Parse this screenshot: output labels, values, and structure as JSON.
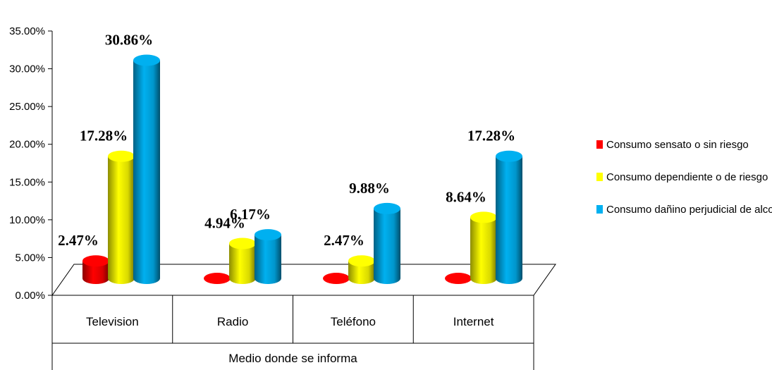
{
  "chart_data": {
    "type": "bar",
    "categories": [
      "Television",
      "Radio",
      "Teléfono",
      "Internet"
    ],
    "series": [
      {
        "name": "Consumo sensato o sin riesgo",
        "color": "#ff0000",
        "values": [
          2.47,
          0,
          0,
          0
        ],
        "labels": [
          "2.47%",
          "",
          "",
          ""
        ]
      },
      {
        "name": "Consumo dependiente o de riesgo",
        "color": "#ffff00",
        "values": [
          17.28,
          4.94,
          2.47,
          8.64
        ],
        "labels": [
          "17.28%",
          "4.94%",
          "2.47%",
          "8.64%"
        ]
      },
      {
        "name": "Consumo dañino perjudicial de alcohol",
        "color": "#00b0f0",
        "values": [
          30.86,
          6.17,
          9.88,
          17.28
        ],
        "labels": [
          "30.86%",
          "6.17%",
          "9.88%",
          "17.28%"
        ]
      }
    ],
    "xlabel": "Medio donde se informa",
    "ylabel": "",
    "ylim": [
      0,
      35
    ],
    "yticks": [
      "0.00%",
      "5.00%",
      "10.00%",
      "15.00%",
      "20.00%",
      "25.00%",
      "30.00%",
      "35.00%"
    ],
    "legend_position": "right",
    "style": "3d-cylinder"
  }
}
